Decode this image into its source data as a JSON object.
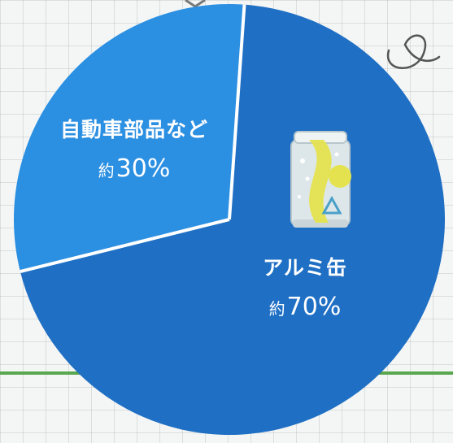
{
  "chart_data": {
    "type": "pie",
    "slices": [
      {
        "label": "アルミ缶",
        "approx": "約",
        "value": 70,
        "value_text": "70%",
        "color": "#1f6fc4"
      },
      {
        "label": "自動車部品など",
        "approx": "約",
        "value": 30,
        "value_text": "30%",
        "color": "#2b8fe2"
      }
    ],
    "separator_color": "#ffffff",
    "label_color": "#ffffff"
  },
  "palette": {
    "background": "#f4f6f5",
    "accent_line": "#59a84f",
    "can_body": "#dde7ea",
    "can_accent": "#e4e34f",
    "handwriting": "#555555"
  },
  "icons": [
    "aluminum-can-icon"
  ]
}
